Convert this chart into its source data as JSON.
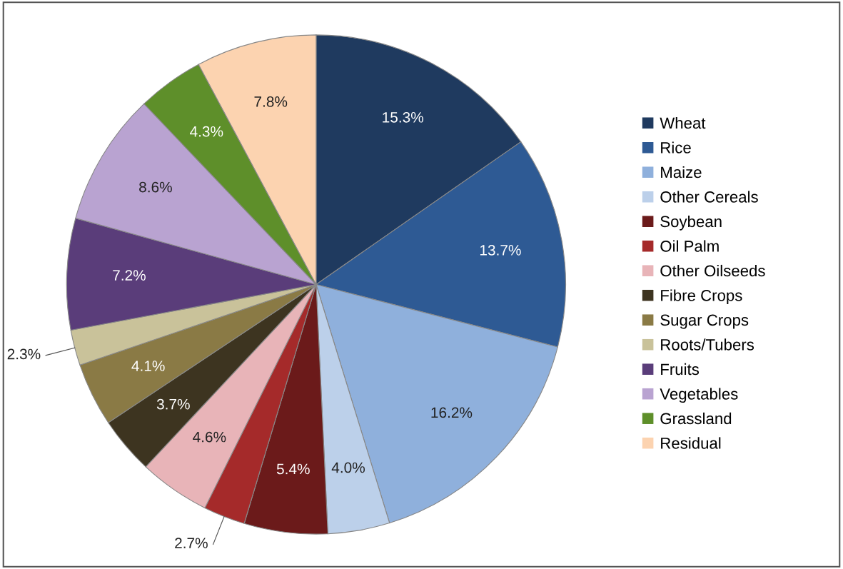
{
  "chart_data": {
    "type": "pie",
    "categories": [
      "Wheat",
      "Rice",
      "Maize",
      "Other Cereals",
      "Soybean",
      "Oil Palm",
      "Other Oilseeds",
      "Fibre Crops",
      "Sugar Crops",
      "Roots/Tubers",
      "Fruits",
      "Vegetables",
      "Grassland",
      "Residual"
    ],
    "values": [
      15.3,
      13.7,
      16.2,
      4.0,
      5.4,
      2.7,
      4.6,
      3.7,
      4.1,
      2.3,
      7.2,
      8.6,
      4.3,
      7.8
    ],
    "value_labels": [
      "15.3%",
      "13.7%",
      "16.2%",
      "4.0%",
      "5.4%",
      "2.7%",
      "4.6%",
      "3.7%",
      "4.1%",
      "2.3%",
      "7.2%",
      "8.6%",
      "4.3%",
      "7.8%"
    ],
    "colors": [
      "#1f3a5f",
      "#2e5a94",
      "#8fb0dc",
      "#bcd0ea",
      "#6b1a1a",
      "#a52a2a",
      "#e8b4b8",
      "#3d3420",
      "#8a7a45",
      "#c9c29a",
      "#5a3d7a",
      "#b9a3d1",
      "#5e8f2a",
      "#fcd3b0"
    ],
    "legend": "right"
  }
}
